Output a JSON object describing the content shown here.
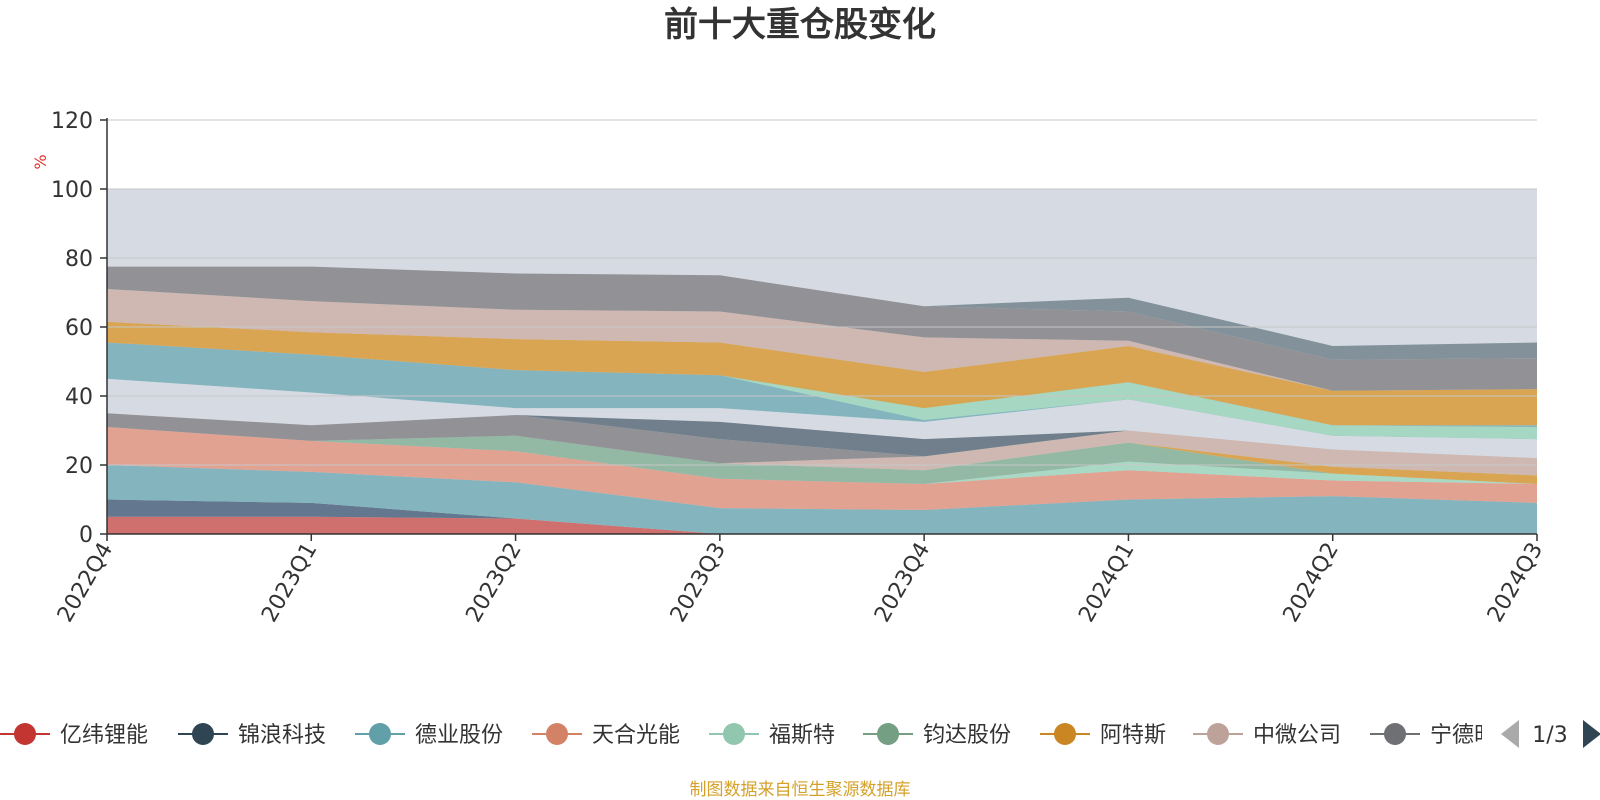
{
  "chart_data": {
    "type": "area",
    "title": "前十大重仓股变化",
    "ylabel": "%",
    "ylim": [
      0,
      120
    ],
    "y_ticks": [
      "0",
      "20",
      "40",
      "60",
      "80",
      "100",
      "120"
    ],
    "grid": true,
    "categories": [
      "2022Q4",
      "2023Q1",
      "2023Q2",
      "2023Q3",
      "2023Q4",
      "2024Q1",
      "2024Q2",
      "2024Q3"
    ],
    "background_total": 100,
    "colors": {
      "background": "#d6dbe3",
      "gridline": "#c7c7c7"
    },
    "series": [
      {
        "name": "亿纬锂能",
        "color": "#d06a67",
        "values": [
          5,
          5,
          4.5,
          0,
          0,
          0,
          0,
          0
        ]
      },
      {
        "name": "锦浪科技",
        "color": "#5d7389",
        "values": [
          5,
          4,
          0,
          0,
          0,
          0,
          0,
          0
        ]
      },
      {
        "name": "德业股份",
        "color": "#7fb3bd",
        "values": [
          10,
          9,
          10.5,
          7.5,
          7,
          10,
          11,
          9
        ]
      },
      {
        "name": "天合光能",
        "color": "#e39f8c",
        "values": [
          11,
          9,
          9,
          8.5,
          7.5,
          8.5,
          4.5,
          5.5
        ]
      },
      {
        "name": "福斯特",
        "color": "#a6d9c3",
        "values": [
          0,
          0,
          0,
          0,
          0,
          2.5,
          2,
          0
        ]
      },
      {
        "name": "钧达股份",
        "color": "#8fb7a1",
        "values": [
          0,
          0,
          4.5,
          4.5,
          4,
          5.5,
          0,
          0
        ]
      },
      {
        "name": "阿特斯",
        "color": "#d9a24a",
        "values": [
          0,
          0,
          0,
          0,
          0,
          0,
          2,
          2.5
        ]
      },
      {
        "name": "中微公司",
        "color": "#ceb6ae",
        "values": [
          0,
          0,
          0,
          0,
          4,
          3.5,
          5,
          5
        ]
      },
      {
        "name": "宁德时代",
        "color": "#8e8e91",
        "values": [
          4,
          4.5,
          6,
          7,
          0,
          0,
          0,
          0
        ]
      },
      {
        "name": "",
        "color": "#6a7a86",
        "values": [
          0,
          0,
          0,
          5,
          5,
          0,
          0,
          0
        ]
      }
    ],
    "extra_bands": [
      {
        "color": "#7fb3bd",
        "values": [
          0,
          0,
          0,
          0,
          5,
          9.5,
          0,
          0
        ]
      },
      {
        "color": "#7fb3bd",
        "values": [
          0,
          0,
          0,
          0,
          0,
          0,
          0,
          3
        ]
      },
      {
        "color": "#ceb6ae",
        "values": [
          0,
          0,
          0,
          0,
          0,
          0,
          0,
          0
        ]
      }
    ],
    "upper_bands": [
      {
        "color": "#7fb3bd",
        "lower": [
          45,
          41,
          36.5,
          36.5,
          32.5,
          39,
          28.5,
          27.5
        ],
        "upper": [
          55.5,
          52,
          47.5,
          46,
          36.5,
          44,
          31.5,
          31.5
        ]
      },
      {
        "color": "#a6d9c3",
        "lower": [
          55.5,
          52,
          47.5,
          46,
          33,
          39,
          28.5,
          27.5
        ],
        "upper": [
          55.5,
          52,
          47.5,
          46,
          37.5,
          44,
          31.5,
          31
        ]
      },
      {
        "color": "#d9a24a",
        "lower": [
          55.5,
          52,
          47.5,
          46,
          36.5,
          44,
          31.5,
          31.5
        ],
        "upper": [
          61.5,
          58.5,
          56.5,
          55.5,
          47,
          54.5,
          41.5,
          42
        ]
      },
      {
        "color": "#ceb6ae",
        "lower": [
          61.5,
          58.5,
          56.5,
          55.5,
          47,
          54.5,
          41.5,
          42
        ],
        "upper": [
          71,
          67.5,
          65,
          64.5,
          57,
          56,
          41.5,
          42
        ]
      },
      {
        "color": "#8e8e91",
        "lower": [
          71,
          67.5,
          65,
          64.5,
          57,
          56,
          41.5,
          42
        ],
        "upper": [
          77.5,
          77.5,
          75.5,
          75,
          66,
          64.5,
          50.5,
          51
        ]
      },
      {
        "color": "#7d8d96",
        "lower": [
          77.5,
          77.5,
          75.5,
          75,
          66,
          64.5,
          50.5,
          51
        ],
        "upper": [
          77.5,
          77.5,
          75.5,
          75,
          66,
          68.5,
          54.5,
          55.5
        ]
      }
    ]
  },
  "legend": {
    "items": [
      {
        "label": "亿纬锂能",
        "color": "#c23531"
      },
      {
        "label": "锦浪科技",
        "color": "#2f4554"
      },
      {
        "label": "德业股份",
        "color": "#61a0a8"
      },
      {
        "label": "天合光能",
        "color": "#d48265"
      },
      {
        "label": "福斯特",
        "color": "#91c7ae"
      },
      {
        "label": "钧达股份",
        "color": "#749f83"
      },
      {
        "label": "阿特斯",
        "color": "#ca8622"
      },
      {
        "label": "中微公司",
        "color": "#bda29a"
      },
      {
        "label": "宁德时代",
        "color": "#6e7074"
      }
    ],
    "page_text": "1/3"
  },
  "footer": "制图数据来自恒生聚源数据库"
}
